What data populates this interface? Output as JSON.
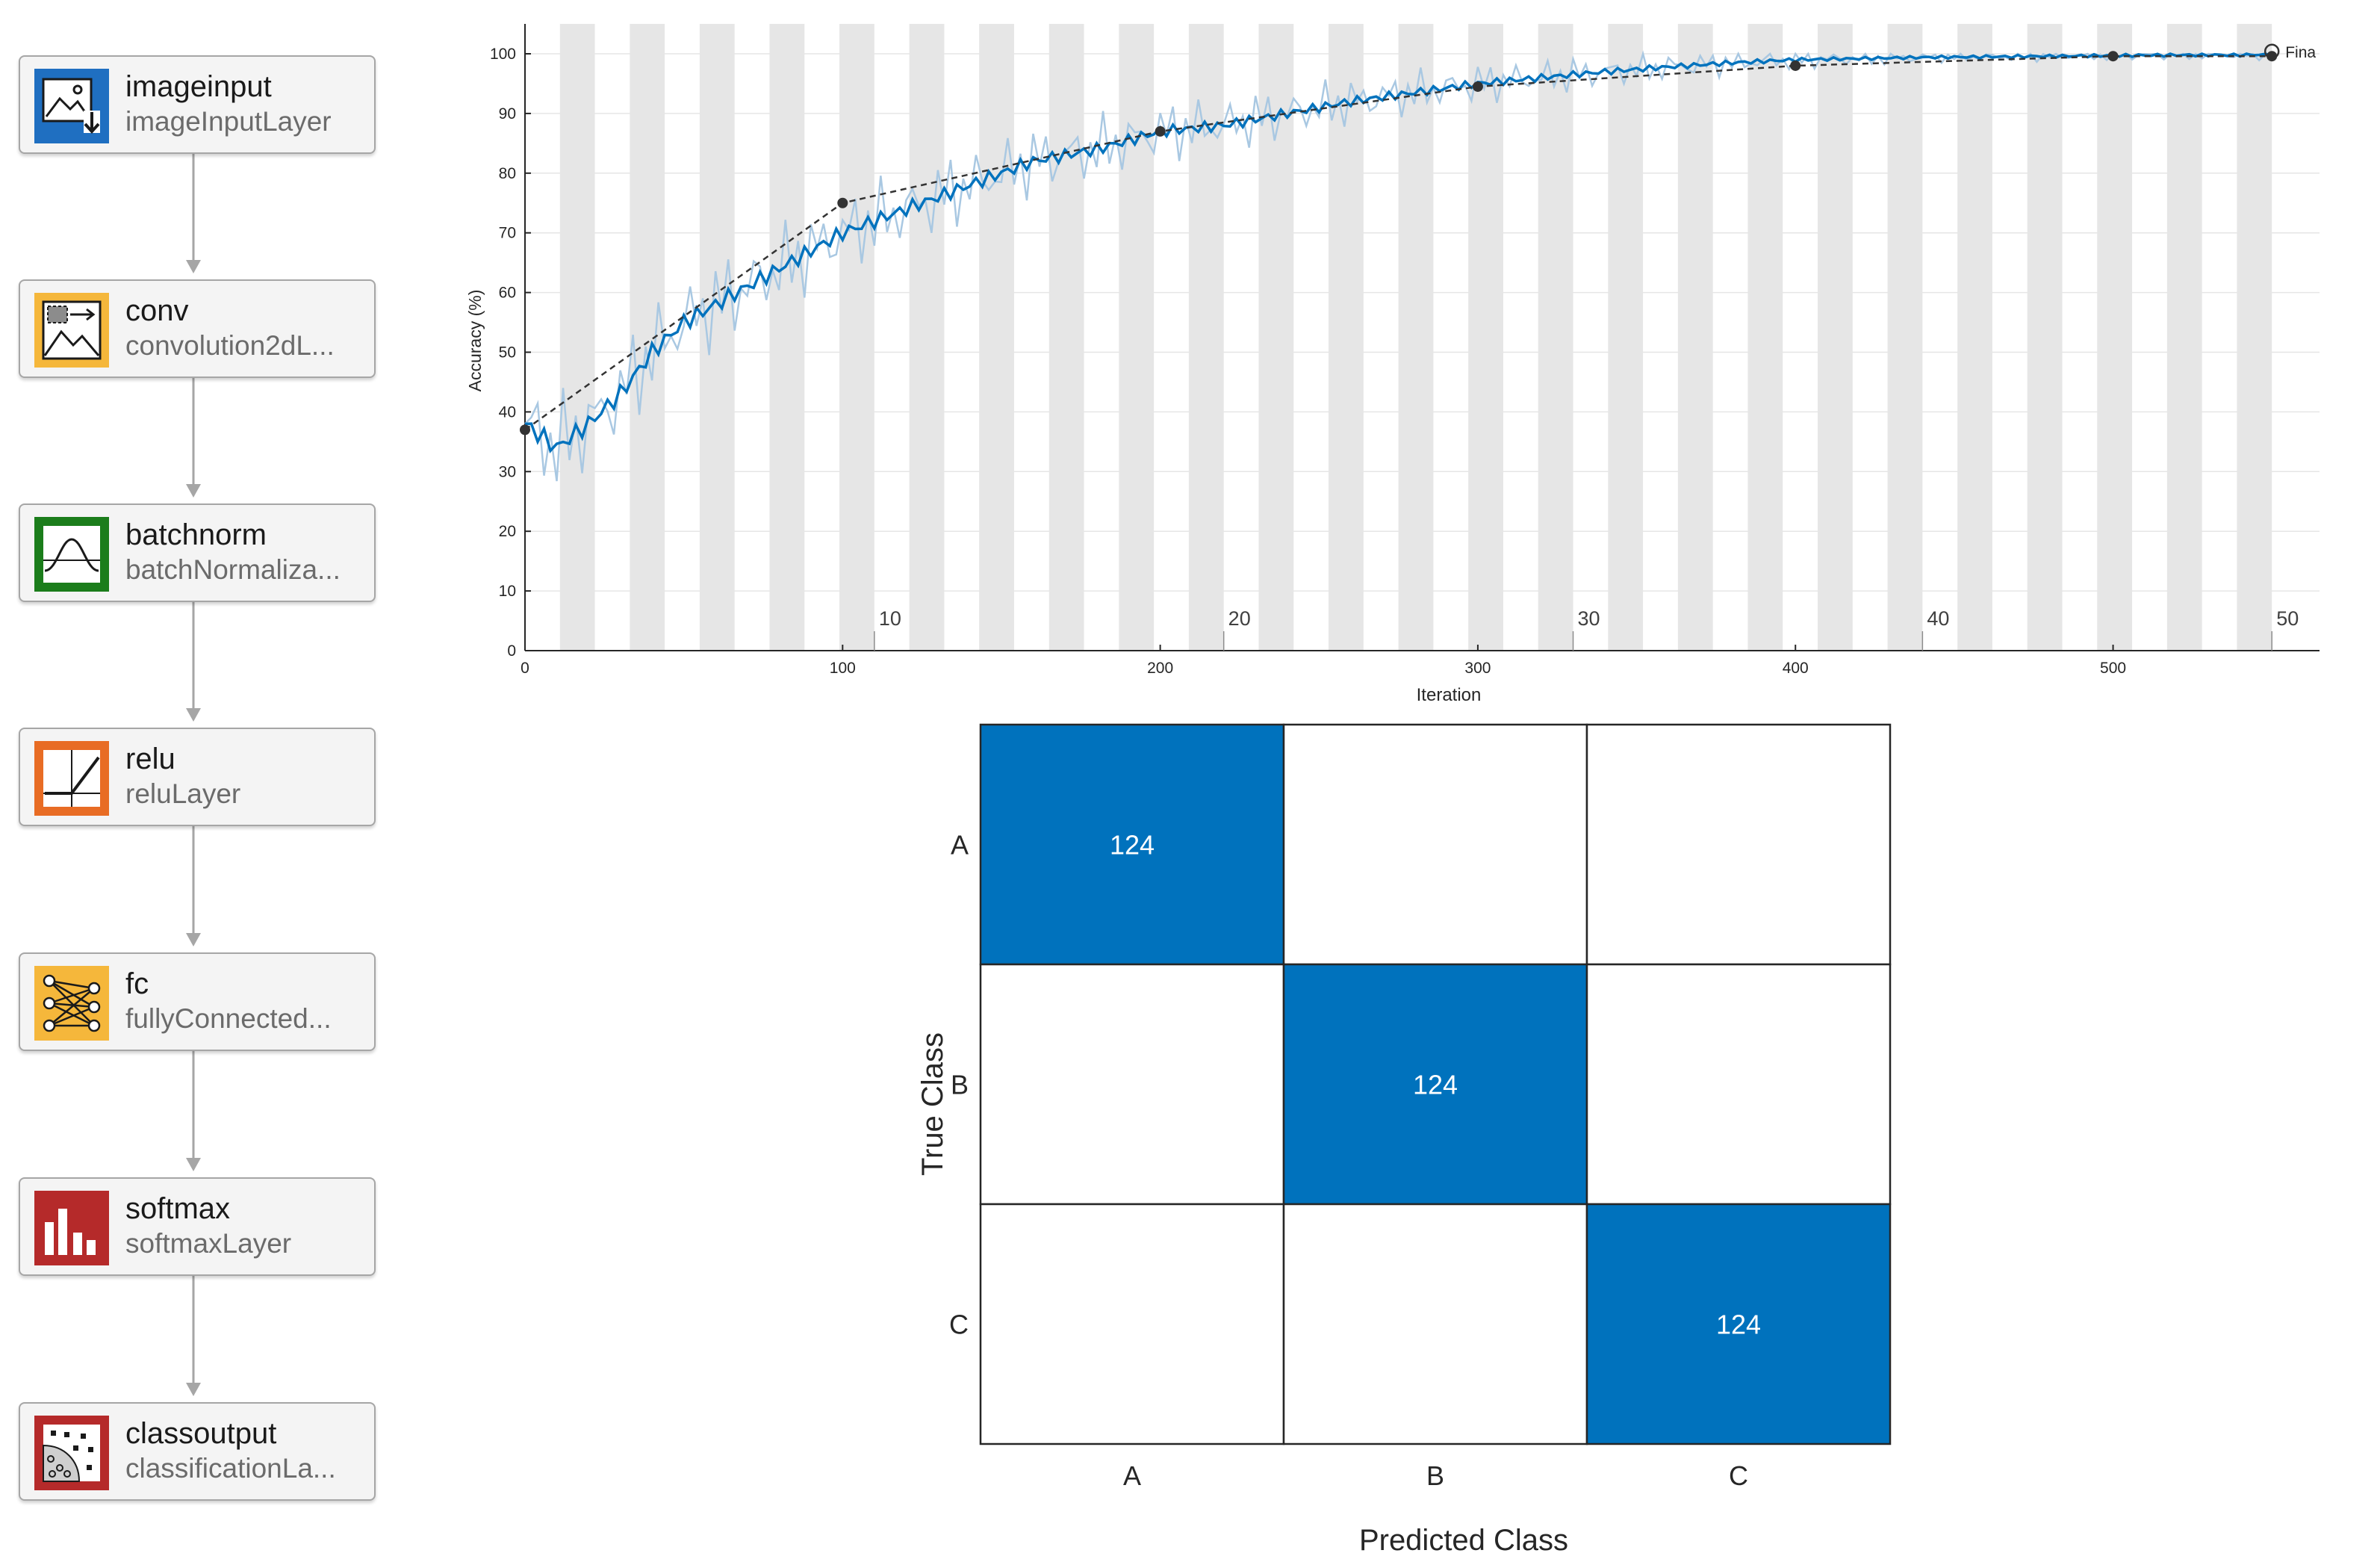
{
  "layers": [
    {
      "name": "imageinput",
      "type": "imageInputLayer",
      "icon": "image-input-icon",
      "color": "#1f6fc1"
    },
    {
      "name": "conv",
      "type": "convolution2dL...",
      "icon": "convolution-icon",
      "color": "#f5b73b"
    },
    {
      "name": "batchnorm",
      "type": "batchNormaliza...",
      "icon": "bell-curve-icon",
      "color": "#1b7d1b"
    },
    {
      "name": "relu",
      "type": "reluLayer",
      "icon": "relu-ramp-icon",
      "color": "#e86c24"
    },
    {
      "name": "fc",
      "type": "fullyConnected...",
      "icon": "fully-connected-icon",
      "color": "#f5b73b"
    },
    {
      "name": "softmax",
      "type": "softmaxLayer",
      "icon": "bar-chart-icon",
      "color": "#b52a2a"
    },
    {
      "name": "classoutput",
      "type": "classificationLa...",
      "icon": "scatter-class-icon",
      "color": "#b52a2a"
    }
  ],
  "colors": {
    "accent": "#0072bd",
    "raw_curve": "#a9c8e2",
    "validation": "#333333",
    "epoch_band": "#e6e6e6",
    "grid": "#e6e6e6",
    "axis": "#262626",
    "cell_hit": "#0072bd",
    "cell_miss": "#ffffff",
    "node_bg": "#f4f4f4"
  },
  "chart_data": [
    {
      "type": "line",
      "xlabel": "Iteration",
      "ylabel": "Accuracy (%)",
      "xlim": [
        0,
        565
      ],
      "ylim": [
        0,
        100
      ],
      "x_ticks": [
        0,
        100,
        200,
        300,
        400,
        500
      ],
      "y_ticks": [
        0,
        10,
        20,
        30,
        40,
        50,
        60,
        70,
        80,
        90,
        100
      ],
      "epoch_labels": [
        10,
        20,
        30,
        40,
        50
      ],
      "iterations_per_epoch": 11,
      "num_epochs": 50,
      "grid": true,
      "final_marker_label": "Fina",
      "series": [
        {
          "name": "",
          "style": "smoothed",
          "x": [
            0,
            10,
            20,
            30,
            40,
            50,
            60,
            70,
            80,
            90,
            100,
            120,
            140,
            160,
            180,
            200,
            220,
            240,
            260,
            280,
            300,
            320,
            340,
            360,
            380,
            400,
            420,
            440,
            460,
            480,
            500,
            520,
            540,
            550
          ],
          "y": [
            38,
            34,
            38,
            43,
            50,
            55,
            58,
            61,
            64,
            67,
            70,
            74,
            78,
            82,
            84,
            87,
            88,
            90,
            92,
            93.5,
            95,
            96,
            97,
            97.8,
            98.5,
            99,
            99.2,
            99.4,
            99.5,
            99.6,
            99.7,
            99.8,
            99.8,
            99.9
          ]
        },
        {
          "name": "",
          "style": "validation",
          "x": [
            0,
            100,
            200,
            300,
            400,
            500,
            550
          ],
          "y": [
            37,
            75,
            87,
            94.5,
            98,
            99.6,
            99.6
          ]
        }
      ]
    },
    {
      "type": "heatmap",
      "xlabel": "Predicted Class",
      "ylabel": "True Class",
      "x_categories": [
        "A",
        "B",
        "C"
      ],
      "y_categories": [
        "A",
        "B",
        "C"
      ],
      "values": [
        [
          124,
          0,
          0
        ],
        [
          0,
          124,
          0
        ],
        [
          0,
          0,
          124
        ]
      ]
    }
  ]
}
